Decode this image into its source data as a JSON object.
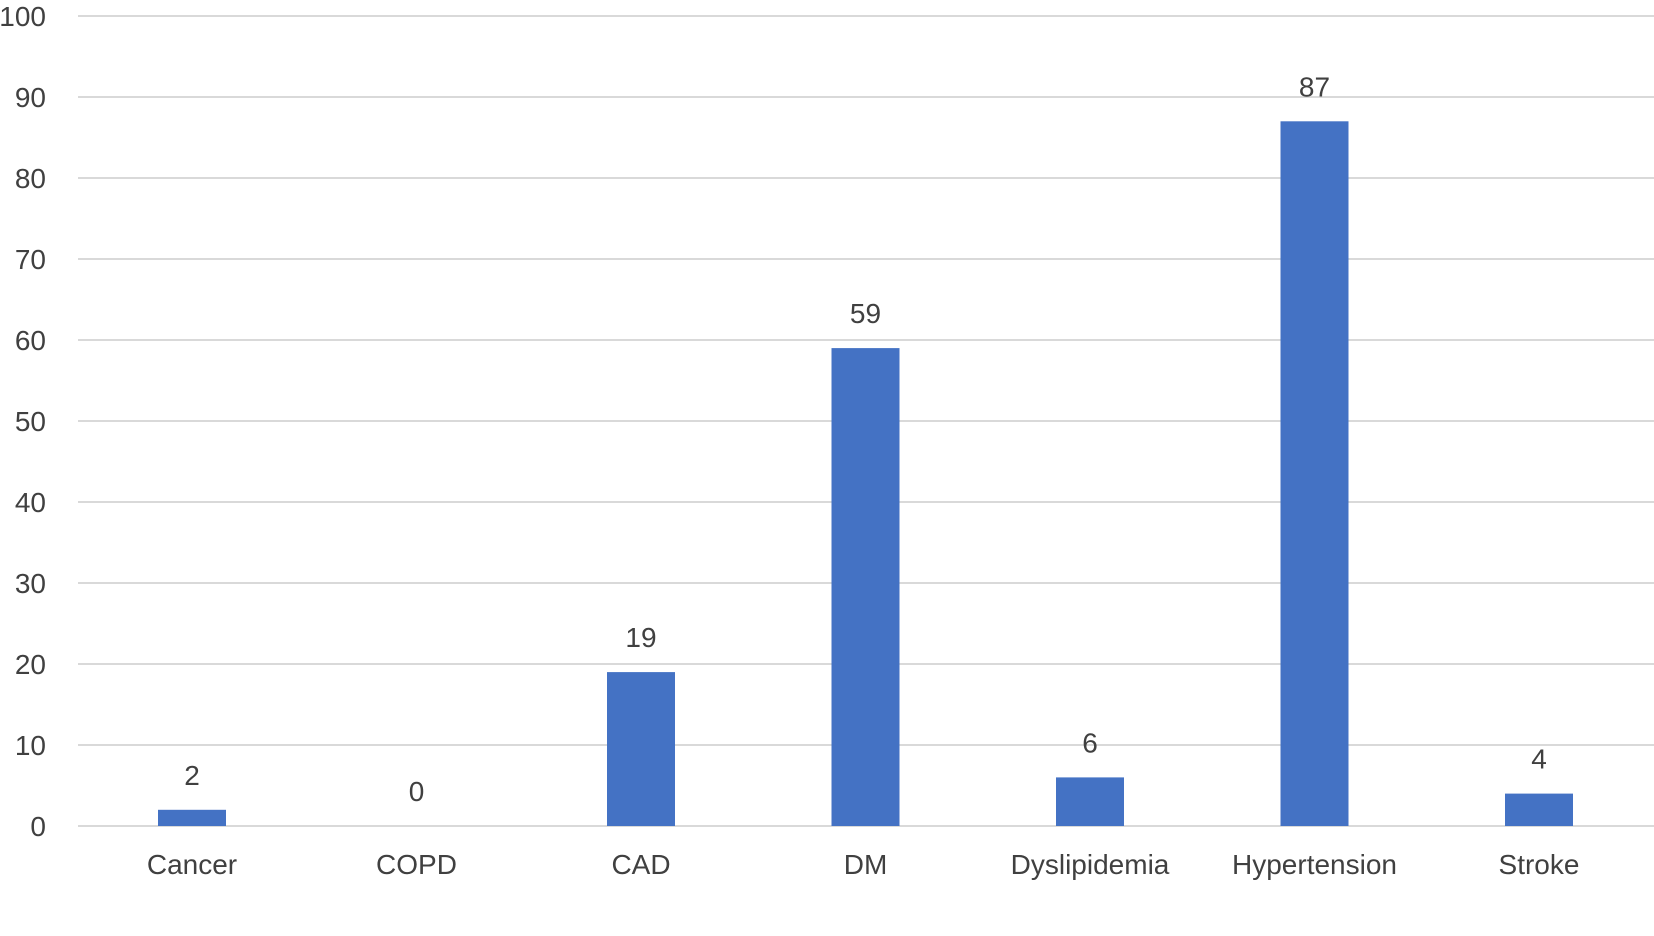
{
  "chart_data": {
    "type": "bar",
    "categories": [
      "Cancer",
      "COPD",
      "CAD",
      "DM",
      "Dyslipidemia",
      "Hypertension",
      "Stroke"
    ],
    "values": [
      2,
      0,
      19,
      59,
      6,
      87,
      4
    ],
    "data_labels": [
      "2",
      "0",
      "19",
      "59",
      "6",
      "87",
      "4"
    ],
    "title": "",
    "xlabel": "",
    "ylabel": "",
    "ylim": [
      0,
      100
    ],
    "yticks": [
      0,
      10,
      20,
      30,
      40,
      50,
      60,
      70,
      80,
      90,
      100
    ],
    "grid": true,
    "legend": "none",
    "colors": {
      "bar": "#4472C4",
      "grid": "#D9D9D9",
      "text": "#404040"
    }
  }
}
